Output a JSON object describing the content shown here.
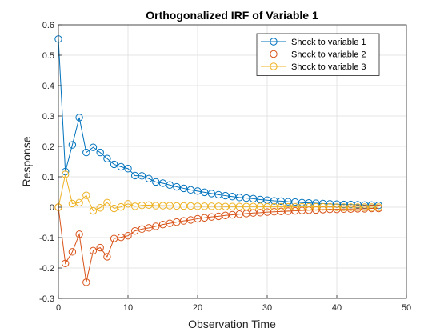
{
  "chart_data": {
    "type": "line",
    "title": "Orthogonalized IRF of Variable 1",
    "xlabel": "Observation Time",
    "ylabel": "Response",
    "xlim": [
      0,
      50
    ],
    "ylim": [
      -0.3,
      0.6
    ],
    "xticks": [
      0,
      10,
      20,
      30,
      40,
      50
    ],
    "yticks": [
      -0.3,
      -0.2,
      -0.1,
      0,
      0.1,
      0.2,
      0.3,
      0.4,
      0.5,
      0.6
    ],
    "xtick_labels": [
      "0",
      "10",
      "20",
      "30",
      "40",
      "50"
    ],
    "ytick_labels": [
      "-0.3",
      "-0.2",
      "-0.1",
      "0",
      "0.1",
      "0.2",
      "0.3",
      "0.4",
      "0.5",
      "0.6"
    ],
    "grid": true,
    "legend_position": "top-right",
    "marker": "circle",
    "x": [
      0,
      1,
      2,
      3,
      4,
      5,
      6,
      7,
      8,
      9,
      10,
      11,
      12,
      13,
      14,
      15,
      16,
      17,
      18,
      19,
      20,
      21,
      22,
      23,
      24,
      25,
      26,
      27,
      28,
      29,
      30,
      31,
      32,
      33,
      34,
      35,
      36,
      37,
      38,
      39,
      40,
      41,
      42,
      43,
      44,
      45,
      46
    ],
    "series": [
      {
        "name": "Shock to variable 1",
        "color": "#0072BD",
        "values": [
          0.553,
          0.117,
          0.205,
          0.295,
          0.18,
          0.197,
          0.18,
          0.16,
          0.141,
          0.133,
          0.127,
          0.104,
          0.103,
          0.094,
          0.083,
          0.079,
          0.073,
          0.067,
          0.062,
          0.057,
          0.053,
          0.049,
          0.045,
          0.041,
          0.038,
          0.035,
          0.032,
          0.03,
          0.028,
          0.025,
          0.023,
          0.021,
          0.02,
          0.018,
          0.017,
          0.015,
          0.014,
          0.013,
          0.012,
          0.011,
          0.01,
          0.009,
          0.009,
          0.008,
          0.007,
          0.007,
          0.006
        ]
      },
      {
        "name": "Shock to variable 2",
        "color": "#D95319",
        "values": [
          0.0,
          -0.185,
          -0.147,
          -0.089,
          -0.247,
          -0.143,
          -0.133,
          -0.163,
          -0.103,
          -0.099,
          -0.094,
          -0.078,
          -0.072,
          -0.068,
          -0.063,
          -0.057,
          -0.053,
          -0.049,
          -0.045,
          -0.042,
          -0.038,
          -0.035,
          -0.032,
          -0.03,
          -0.027,
          -0.025,
          -0.023,
          -0.021,
          -0.019,
          -0.018,
          -0.016,
          -0.015,
          -0.014,
          -0.013,
          -0.012,
          -0.011,
          -0.01,
          -0.009,
          -0.008,
          -0.007,
          -0.007,
          -0.006,
          -0.006,
          -0.005,
          -0.005,
          -0.004,
          -0.004
        ]
      },
      {
        "name": "Shock to variable 3",
        "color": "#EDB120",
        "values": [
          0.0,
          0.108,
          0.012,
          0.015,
          0.039,
          -0.012,
          -0.002,
          0.015,
          -0.004,
          0.001,
          0.011,
          0.003,
          0.006,
          0.007,
          0.005,
          0.005,
          0.005,
          0.004,
          0.004,
          0.004,
          0.003,
          0.003,
          0.003,
          0.003,
          0.002,
          0.002,
          0.002,
          0.002,
          0.002,
          0.002,
          0.001,
          0.001,
          0.001,
          0.001,
          0.001,
          0.001,
          0.001,
          0.001,
          0.001,
          0.001,
          0.0,
          0.0,
          0.0,
          0.0,
          0.0,
          0.0,
          0.0
        ]
      }
    ]
  }
}
